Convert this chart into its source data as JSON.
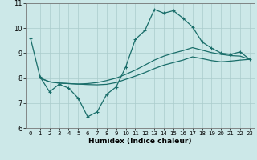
{
  "xlabel": "Humidex (Indice chaleur)",
  "bg_color": "#cce8e8",
  "line_color": "#1a6e6a",
  "grid_color": "#aacccc",
  "xlim": [
    -0.5,
    23.5
  ],
  "ylim": [
    6,
    11
  ],
  "xticks": [
    0,
    1,
    2,
    3,
    4,
    5,
    6,
    7,
    8,
    9,
    10,
    11,
    12,
    13,
    14,
    15,
    16,
    17,
    18,
    19,
    20,
    21,
    22,
    23
  ],
  "yticks": [
    6,
    7,
    8,
    9,
    10,
    11
  ],
  "lines": [
    {
      "x": [
        0,
        1,
        2,
        3,
        4,
        5,
        6,
        7,
        8,
        9,
        10,
        11,
        12,
        13,
        14,
        15,
        16,
        17,
        18,
        19,
        20,
        21,
        22,
        23
      ],
      "y": [
        9.6,
        8.05,
        7.45,
        7.75,
        7.6,
        7.2,
        6.45,
        6.65,
        7.35,
        7.65,
        8.45,
        9.55,
        9.9,
        10.75,
        10.6,
        10.7,
        10.4,
        10.05,
        9.45,
        9.2,
        9.0,
        8.95,
        9.05,
        8.75
      ],
      "marker": true
    },
    {
      "x": [
        1,
        2,
        3,
        4,
        5,
        6,
        7,
        8,
        9,
        10,
        11,
        12,
        13,
        14,
        15,
        16,
        17,
        18,
        19,
        20,
        21,
        22,
        23
      ],
      "y": [
        8.0,
        7.85,
        7.8,
        7.78,
        7.76,
        7.78,
        7.82,
        7.9,
        8.0,
        8.15,
        8.32,
        8.52,
        8.72,
        8.88,
        9.0,
        9.1,
        9.22,
        9.12,
        9.02,
        8.95,
        8.9,
        8.88,
        8.75
      ],
      "marker": false
    },
    {
      "x": [
        1,
        2,
        3,
        4,
        5,
        6,
        7,
        8,
        9,
        10,
        11,
        12,
        13,
        14,
        15,
        16,
        17,
        18,
        19,
        20,
        21,
        22,
        23
      ],
      "y": [
        8.0,
        7.85,
        7.8,
        7.78,
        7.76,
        7.74,
        7.73,
        7.75,
        7.82,
        7.95,
        8.08,
        8.22,
        8.38,
        8.52,
        8.62,
        8.72,
        8.85,
        8.78,
        8.7,
        8.65,
        8.68,
        8.72,
        8.75
      ],
      "marker": false
    }
  ]
}
